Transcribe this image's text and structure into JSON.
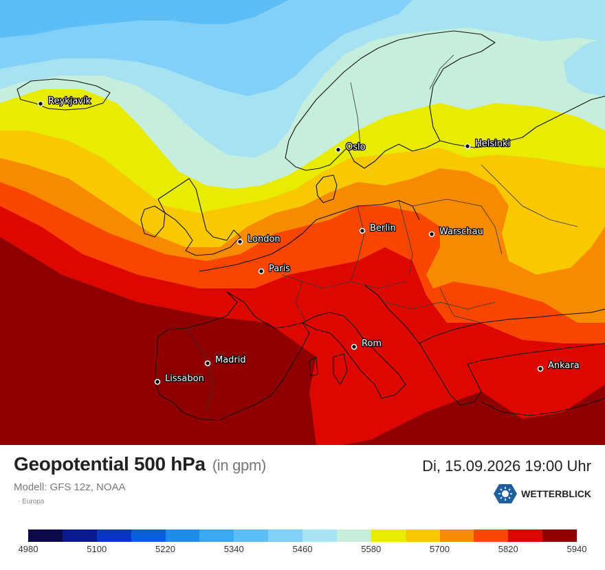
{
  "map": {
    "cities": [
      {
        "name": "Reykjavík"
      },
      {
        "name": "Oslo"
      },
      {
        "name": "Helsinki"
      },
      {
        "name": "London"
      },
      {
        "name": "Berlin"
      },
      {
        "name": "Warschau"
      },
      {
        "name": "Paris"
      },
      {
        "name": "Madrid"
      },
      {
        "name": "Lissabon"
      },
      {
        "name": "Rom"
      },
      {
        "name": "Ankara"
      }
    ]
  },
  "header": {
    "title": "Geopotential 500 hPa",
    "unit": "(in gpm)",
    "model": "Modell: GFS 12z, NOAA",
    "region": "Europa",
    "datetime": "Di, 15.09.2026 19:00 Uhr"
  },
  "logo": {
    "text": "WETTERBLICK",
    "color": "#1e5fa0"
  },
  "legend": {
    "colors": [
      "#0a0a4a",
      "#0a1a8e",
      "#0a34c4",
      "#0a5fdc",
      "#1e8ce8",
      "#3caaf0",
      "#5cbef5",
      "#82d0f7",
      "#a6e2f2",
      "#c6eedc",
      "#e8ec00",
      "#f8c800",
      "#f88a00",
      "#f84600",
      "#dc0800",
      "#8e0000"
    ],
    "ticks": [
      "4980",
      "5100",
      "5220",
      "5340",
      "5460",
      "5580",
      "5700",
      "5820",
      "5940"
    ]
  }
}
